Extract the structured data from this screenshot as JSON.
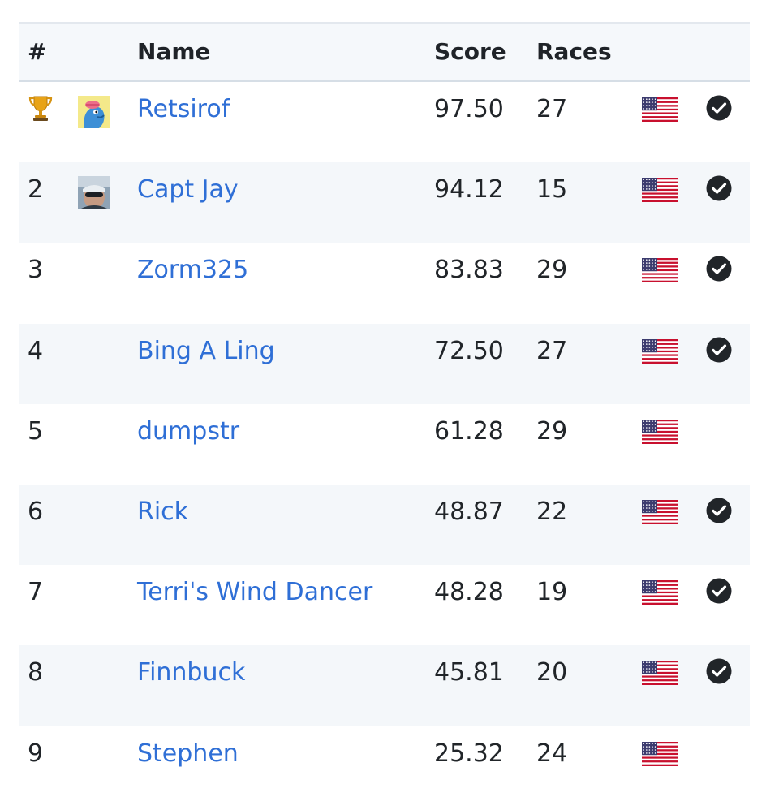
{
  "header": {
    "rank": "#",
    "name": "Name",
    "score": "Score",
    "races": "Races"
  },
  "rows": [
    {
      "rank": "",
      "trophy": true,
      "avatar": "cartoon",
      "name": "Retsirof",
      "score": "97.50",
      "races": "27",
      "verified": true
    },
    {
      "rank": "2",
      "trophy": false,
      "avatar": "photo",
      "name": "Capt Jay",
      "score": "94.12",
      "races": "15",
      "verified": true
    },
    {
      "rank": "3",
      "trophy": false,
      "avatar": null,
      "name": "Zorm325",
      "score": "83.83",
      "races": "29",
      "verified": true
    },
    {
      "rank": "4",
      "trophy": false,
      "avatar": null,
      "name": "Bing A Ling",
      "score": "72.50",
      "races": "27",
      "verified": true
    },
    {
      "rank": "5",
      "trophy": false,
      "avatar": null,
      "name": "dumpstr",
      "score": "61.28",
      "races": "29",
      "verified": false
    },
    {
      "rank": "6",
      "trophy": false,
      "avatar": null,
      "name": "Rick",
      "score": "48.87",
      "races": "22",
      "verified": true
    },
    {
      "rank": "7",
      "trophy": false,
      "avatar": null,
      "name": "Terri's Wind Dancer",
      "score": "48.28",
      "races": "19",
      "verified": true
    },
    {
      "rank": "8",
      "trophy": false,
      "avatar": null,
      "name": "Finnbuck",
      "score": "45.81",
      "races": "20",
      "verified": true
    },
    {
      "rank": "9",
      "trophy": false,
      "avatar": null,
      "name": "Stephen",
      "score": "25.32",
      "races": "24",
      "verified": false
    }
  ],
  "icons": {
    "trophy": "trophy-icon",
    "flag": "us-flag-icon",
    "verified": "check-circle-icon"
  },
  "colors": {
    "link": "#2f6fd6",
    "header_bg": "#f5f8fb",
    "alt_row": "#f4f7fa",
    "check": "#212529"
  }
}
